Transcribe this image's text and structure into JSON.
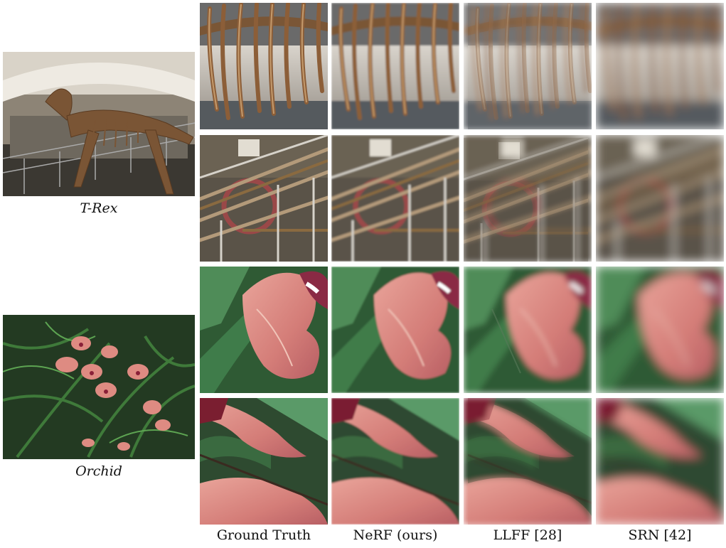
{
  "scenes": [
    {
      "id": "trex",
      "caption": "T-Rex"
    },
    {
      "id": "orchid",
      "caption": "Orchid"
    }
  ],
  "columns": [
    {
      "label": "Ground Truth"
    },
    {
      "label": "NeRF (ours)"
    },
    {
      "label": "LLFF [28]"
    },
    {
      "label": "SRN [42]"
    }
  ]
}
